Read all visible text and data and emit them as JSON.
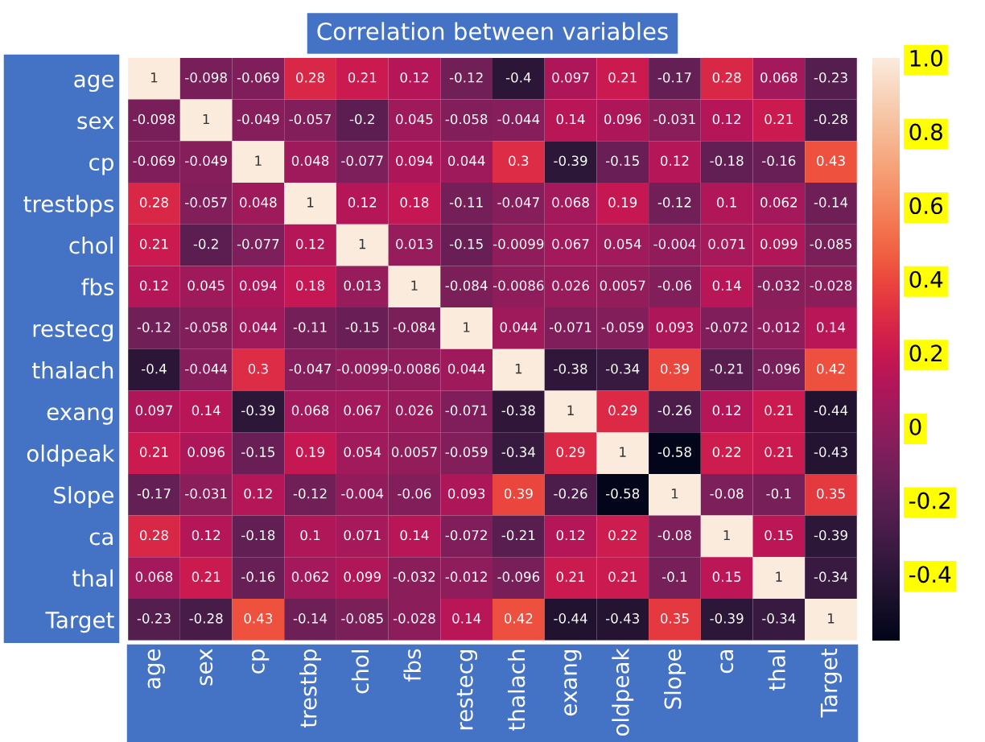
{
  "chart_data": {
    "type": "heatmap",
    "title": "Correlation between variables",
    "categories": [
      "age",
      "sex",
      "cp",
      "trestbp",
      "chol",
      "fbs",
      "restecg",
      "thalach",
      "exang",
      "oldpeak",
      "Slope",
      "ca",
      "thal",
      "Target"
    ],
    "y_categories": [
      "age",
      "sex",
      "cp",
      "trestbps",
      "chol",
      "fbs",
      "restecg",
      "thalach",
      "exang",
      "oldpeak",
      "Slope",
      "ca",
      "thal",
      "Target"
    ],
    "cells": [
      [
        1,
        -0.098,
        -0.069,
        0.28,
        0.21,
        0.12,
        -0.12,
        -0.4,
        0.097,
        0.21,
        -0.17,
        0.28,
        0.068,
        -0.23
      ],
      [
        -0.098,
        1,
        -0.049,
        -0.057,
        -0.2,
        0.045,
        -0.058,
        -0.044,
        0.14,
        0.096,
        -0.031,
        0.12,
        0.21,
        -0.28
      ],
      [
        -0.069,
        -0.049,
        1,
        0.048,
        -0.077,
        0.094,
        0.044,
        0.3,
        -0.39,
        -0.15,
        0.12,
        -0.18,
        -0.16,
        0.43
      ],
      [
        0.28,
        -0.057,
        0.048,
        1,
        0.12,
        0.18,
        -0.11,
        -0.047,
        0.068,
        0.19,
        -0.12,
        0.1,
        0.062,
        -0.14
      ],
      [
        0.21,
        -0.2,
        -0.077,
        0.12,
        1,
        0.013,
        -0.15,
        -0.0099,
        0.067,
        0.054,
        -0.004,
        0.071,
        0.099,
        -0.085
      ],
      [
        0.12,
        0.045,
        0.094,
        0.18,
        0.013,
        1,
        -0.084,
        -0.0086,
        0.026,
        0.0057,
        -0.06,
        0.14,
        -0.032,
        -0.028
      ],
      [
        -0.12,
        -0.058,
        0.044,
        -0.11,
        -0.15,
        -0.084,
        1,
        0.044,
        -0.071,
        -0.059,
        0.093,
        -0.072,
        -0.012,
        0.14
      ],
      [
        -0.4,
        -0.044,
        0.3,
        -0.047,
        -0.0099,
        -0.0086,
        0.044,
        1,
        -0.38,
        -0.34,
        0.39,
        -0.21,
        -0.096,
        0.42
      ],
      [
        0.097,
        0.14,
        -0.39,
        0.068,
        0.067,
        0.026,
        -0.071,
        -0.38,
        1,
        0.29,
        -0.26,
        0.12,
        0.21,
        -0.44
      ],
      [
        0.21,
        0.096,
        -0.15,
        0.19,
        0.054,
        0.0057,
        -0.059,
        -0.34,
        0.29,
        1,
        -0.58,
        0.22,
        0.21,
        -0.43
      ],
      [
        -0.17,
        -0.031,
        0.12,
        -0.12,
        -0.004,
        -0.06,
        0.093,
        0.39,
        -0.26,
        -0.58,
        1,
        -0.08,
        -0.1,
        0.35
      ],
      [
        0.28,
        0.12,
        -0.18,
        0.1,
        0.071,
        0.14,
        -0.072,
        -0.21,
        0.12,
        0.22,
        -0.08,
        1,
        0.15,
        -0.39
      ],
      [
        0.068,
        0.21,
        -0.16,
        0.062,
        0.099,
        -0.032,
        -0.012,
        -0.096,
        0.21,
        0.21,
        -0.1,
        0.15,
        1,
        -0.34
      ],
      [
        -0.23,
        -0.28,
        0.43,
        -0.14,
        -0.085,
        -0.028,
        0.14,
        0.42,
        -0.44,
        -0.43,
        0.35,
        -0.39,
        -0.34,
        1
      ]
    ],
    "data_labels": true,
    "clim": [
      -0.58,
      1
    ],
    "cticks": [
      {
        "value": 1,
        "label": "1.0"
      },
      0.8,
      0.6,
      0.4,
      0.2,
      0,
      -0.2,
      -0.4
    ]
  }
}
